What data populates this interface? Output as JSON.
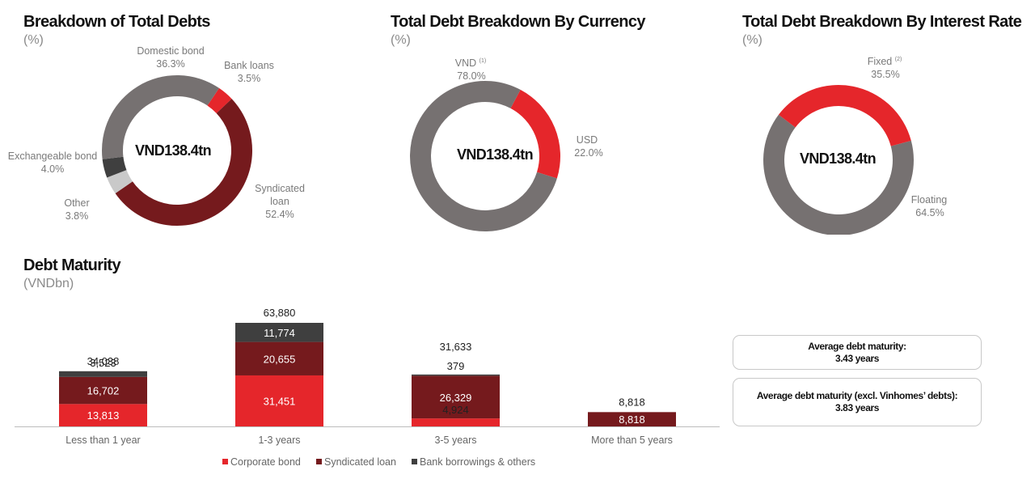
{
  "colors": {
    "red": "#e5262b",
    "maroon": "#751a1d",
    "gray": "#767171",
    "light_gray": "#c9c9c9",
    "dark_gray": "#3f3f3f"
  },
  "panels": {
    "debts": {
      "title": "Breakdown of Total Debts",
      "unit": "(%)"
    },
    "currency": {
      "title": "Total Debt Breakdown By Currency",
      "unit": "(%)"
    },
    "rate": {
      "title": "Total Debt Breakdown By Interest Rate",
      "unit": "(%)"
    },
    "maturity": {
      "title": "Debt Maturity",
      "unit": "(VNDbn)"
    }
  },
  "summary": {
    "avg_maturity_label": "Average debt maturity:",
    "avg_maturity_value": "3.43 years",
    "avg_maturity_excl_label": "Average debt maturity (excl. Vinhomes’ debts):",
    "avg_maturity_excl_value": "3.83 years"
  },
  "chart_data": [
    {
      "type": "pie",
      "title": "Breakdown of Total Debts",
      "center_label": "VND138.4tn",
      "slices": [
        {
          "name": "Bank loans",
          "value": 3.5,
          "value_label": "3.5%",
          "color": "#e5262b"
        },
        {
          "name": "Syndicated loan",
          "value": 52.4,
          "value_label": "52.4%",
          "color": "#751a1d"
        },
        {
          "name": "Other",
          "value": 3.8,
          "value_label": "3.8%",
          "color": "#c9c9c9"
        },
        {
          "name": "Exchangeable bond",
          "value": 4.0,
          "value_label": "4.0%",
          "color": "#3f3f3f"
        },
        {
          "name": "Domestic bond",
          "value": 36.3,
          "value_label": "36.3%",
          "color": "#767171"
        }
      ]
    },
    {
      "type": "pie",
      "title": "Total Debt Breakdown By Currency",
      "center_label": "VND138.4tn",
      "slices": [
        {
          "name": "USD",
          "value": 22.0,
          "value_label": "22.0%",
          "color": "#e5262b"
        },
        {
          "name": "VND",
          "sup": "(1)",
          "value": 78.0,
          "value_label": "78.0%",
          "color": "#767171"
        }
      ]
    },
    {
      "type": "pie",
      "title": "Total Debt Breakdown By Interest Rate",
      "center_label": "VND138.4tn",
      "slices": [
        {
          "name": "Floating",
          "value": 64.5,
          "value_label": "64.5%",
          "color": "#767171"
        },
        {
          "name": "Fixed",
          "sup": "(2)",
          "value": 35.5,
          "value_label": "35.5%",
          "color": "#e5262b"
        }
      ]
    },
    {
      "type": "bar",
      "stacked": true,
      "title": "Debt Maturity",
      "categories": [
        "Less than 1 year",
        "1-3 years",
        "3-5 years",
        "More than 5 years"
      ],
      "series": [
        {
          "name": "Corporate bond",
          "color": "#e5262b",
          "values": [
            13813,
            31451,
            4924,
            0
          ]
        },
        {
          "name": "Syndicated loan",
          "color": "#751a1d",
          "values": [
            16702,
            20655,
            26329,
            8818
          ]
        },
        {
          "name": "Bank borrowings & others",
          "color": "#3f3f3f",
          "values": [
            3523,
            11774,
            379,
            0
          ]
        }
      ],
      "value_labels": [
        [
          "13,813",
          "31,451",
          "4,924",
          ""
        ],
        [
          "16,702",
          "20,655",
          "26,329",
          "8,818"
        ],
        [
          "3,523",
          "11,774",
          "379",
          ""
        ]
      ],
      "totals": [
        34038,
        63880,
        31633,
        8818
      ],
      "total_labels": [
        "34,038",
        "63,880",
        "31,633",
        "8,818"
      ],
      "ylim": [
        0,
        63880
      ]
    }
  ]
}
